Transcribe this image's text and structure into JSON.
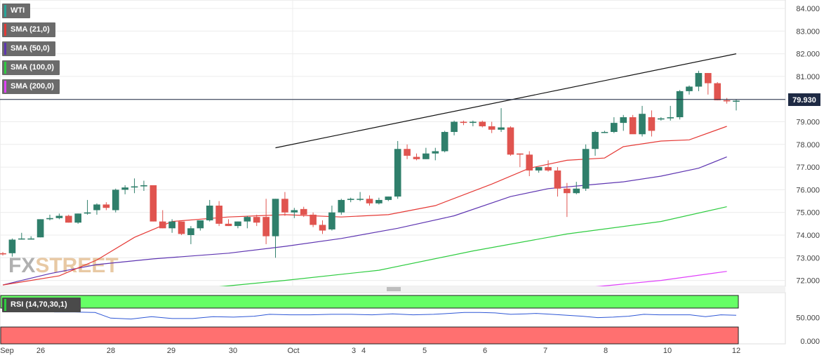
{
  "watermark": {
    "part1": "FX",
    "part2": "STREET"
  },
  "legend": [
    {
      "label": "WTI",
      "color": "#26a69a"
    },
    {
      "label": "SMA (21,0)",
      "color": "#e53935"
    },
    {
      "label": "SMA (50,0)",
      "color": "#5e35b1"
    },
    {
      "label": "SMA (100,0)",
      "color": "#2ecc40"
    },
    {
      "label": "SMA (200,0)",
      "color": "#e040fb"
    }
  ],
  "price_tag": "79.930",
  "rsi_label": "RSI (14,70,30,1)",
  "chart_data": [
    {
      "type": "candlestick",
      "title": "WTI",
      "ylim": [
        71.6,
        84.2
      ],
      "y_ticks": [
        "84.000",
        "83.000",
        "82.000",
        "81.000",
        "80.000",
        "79.000",
        "78.000",
        "77.000",
        "76.000",
        "75.000",
        "74.000",
        "73.000",
        "72.000"
      ],
      "x_ticks": [
        "Sep",
        "26",
        "28",
        "29",
        "30",
        "Oct",
        "3",
        "4",
        "5",
        "6",
        "7",
        "8",
        "10",
        "12"
      ],
      "last_price": 79.93,
      "colors": {
        "up": "#2f7f6b",
        "down": "#e0544f"
      },
      "candles": [
        [
          73.2,
          73.25,
          73.1,
          73.15
        ],
        [
          73.2,
          73.85,
          73.05,
          73.8
        ],
        [
          73.85,
          74.1,
          73.8,
          73.85
        ],
        [
          73.85,
          73.95,
          73.8,
          73.85
        ],
        [
          73.9,
          74.7,
          73.9,
          74.7
        ],
        [
          74.7,
          74.9,
          74.65,
          74.75
        ],
        [
          74.75,
          74.95,
          74.7,
          74.85
        ],
        [
          74.85,
          74.9,
          74.55,
          74.55
        ],
        [
          74.55,
          74.95,
          74.5,
          74.95
        ],
        [
          74.95,
          75.55,
          74.9,
          75.0
        ],
        [
          75.1,
          75.4,
          74.9,
          75.35
        ],
        [
          75.35,
          75.45,
          75.1,
          75.2
        ],
        [
          75.1,
          76.05,
          75.0,
          76.0
        ],
        [
          76.0,
          76.2,
          75.8,
          76.1
        ],
        [
          76.1,
          76.5,
          75.85,
          76.15
        ],
        [
          76.15,
          76.4,
          75.95,
          76.2
        ],
        [
          76.2,
          76.15,
          74.6,
          74.6
        ],
        [
          74.6,
          75.1,
          74.3,
          74.3
        ],
        [
          74.3,
          74.7,
          74.1,
          74.6
        ],
        [
          74.6,
          74.6,
          74.0,
          74.05
        ],
        [
          74.0,
          74.4,
          73.6,
          74.3
        ],
        [
          74.3,
          74.65,
          74.2,
          74.65
        ],
        [
          74.65,
          75.55,
          74.6,
          75.3
        ],
        [
          75.3,
          75.5,
          74.4,
          74.5
        ],
        [
          74.5,
          74.7,
          74.4,
          74.4
        ],
        [
          74.4,
          74.6,
          74.3,
          74.6
        ],
        [
          74.6,
          74.85,
          74.3,
          74.8
        ],
        [
          74.8,
          74.9,
          74.4,
          74.55
        ],
        [
          74.8,
          75.6,
          73.6,
          73.95
        ],
        [
          73.95,
          75.6,
          73.0,
          75.6
        ],
        [
          75.6,
          75.9,
          74.85,
          75.0
        ],
        [
          75.0,
          75.2,
          74.75,
          75.1
        ],
        [
          75.15,
          75.25,
          74.8,
          74.9
        ],
        [
          74.9,
          75.0,
          74.35,
          74.45
        ],
        [
          74.45,
          74.65,
          74.05,
          74.2
        ],
        [
          74.25,
          75.3,
          74.2,
          75.0
        ],
        [
          75.0,
          75.6,
          74.9,
          75.55
        ],
        [
          75.55,
          75.65,
          75.45,
          75.6
        ],
        [
          75.6,
          75.9,
          75.5,
          75.6
        ],
        [
          75.6,
          75.75,
          75.3,
          75.4
        ],
        [
          75.4,
          75.65,
          75.35,
          75.55
        ],
        [
          75.55,
          75.7,
          75.5,
          75.7
        ],
        [
          75.7,
          78.15,
          75.6,
          77.8
        ],
        [
          77.8,
          78.0,
          77.35,
          77.5
        ],
        [
          77.45,
          77.6,
          77.3,
          77.35
        ],
        [
          77.35,
          77.85,
          77.35,
          77.6
        ],
        [
          77.6,
          77.85,
          77.3,
          77.7
        ],
        [
          77.7,
          78.6,
          77.65,
          78.55
        ],
        [
          78.55,
          79.05,
          78.4,
          79.0
        ],
        [
          79.0,
          79.05,
          78.85,
          78.95
        ],
        [
          78.95,
          79.05,
          78.8,
          79.0
        ],
        [
          79.0,
          79.05,
          78.75,
          78.8
        ],
        [
          78.8,
          79.0,
          78.5,
          78.65
        ],
        [
          78.65,
          79.6,
          78.55,
          78.75
        ],
        [
          78.75,
          78.8,
          77.5,
          77.55
        ],
        [
          77.6,
          77.6,
          77.0,
          77.55
        ],
        [
          77.55,
          77.7,
          76.6,
          76.85
        ],
        [
          76.85,
          77.0,
          76.75,
          77.0
        ],
        [
          77.0,
          77.3,
          76.8,
          76.85
        ],
        [
          76.85,
          77.0,
          75.7,
          76.05
        ],
        [
          76.05,
          76.3,
          74.8,
          75.85
        ],
        [
          75.85,
          76.35,
          75.8,
          76.05
        ],
        [
          76.05,
          78.0,
          75.95,
          77.8
        ],
        [
          77.8,
          78.6,
          77.5,
          78.55
        ],
        [
          78.55,
          78.6,
          78.5,
          78.55
        ],
        [
          78.55,
          79.2,
          78.5,
          78.95
        ],
        [
          78.95,
          79.3,
          78.6,
          79.2
        ],
        [
          79.2,
          79.3,
          78.5,
          78.45
        ],
        [
          78.45,
          79.7,
          78.35,
          79.35
        ],
        [
          79.2,
          79.5,
          78.35,
          78.6
        ],
        [
          79.1,
          79.2,
          79.05,
          79.15
        ],
        [
          79.15,
          79.7,
          79.05,
          79.2
        ],
        [
          79.2,
          80.4,
          79.1,
          80.35
        ],
        [
          80.35,
          80.6,
          80.2,
          80.55
        ],
        [
          80.55,
          81.25,
          80.35,
          81.15
        ],
        [
          81.15,
          81.15,
          80.2,
          80.7
        ],
        [
          80.7,
          80.75,
          79.95,
          79.95
        ],
        [
          79.95,
          80.05,
          79.8,
          79.9
        ],
        [
          79.9,
          80.0,
          79.5,
          79.93
        ]
      ],
      "sma21": [
        [
          0,
          71.8
        ],
        [
          6,
          72.2
        ],
        [
          10,
          72.9
        ],
        [
          14,
          73.9
        ],
        [
          18,
          74.6
        ],
        [
          24,
          74.8
        ],
        [
          30,
          74.9
        ],
        [
          36,
          74.8
        ],
        [
          41,
          74.9
        ],
        [
          46,
          75.3
        ],
        [
          52,
          76.25
        ],
        [
          56,
          76.95
        ],
        [
          60,
          77.3
        ],
        [
          64,
          77.4
        ],
        [
          66,
          77.9
        ],
        [
          70,
          78.15
        ],
        [
          73,
          78.2
        ],
        [
          77,
          78.8
        ]
      ],
      "sma50": [
        [
          0,
          71.8
        ],
        [
          5,
          72.3
        ],
        [
          10,
          72.7
        ],
        [
          16,
          72.95
        ],
        [
          24,
          73.2
        ],
        [
          30,
          73.5
        ],
        [
          36,
          73.85
        ],
        [
          42,
          74.3
        ],
        [
          48,
          74.85
        ],
        [
          54,
          75.7
        ],
        [
          58,
          76.05
        ],
        [
          62,
          76.2
        ],
        [
          66,
          76.35
        ],
        [
          70,
          76.6
        ],
        [
          74,
          76.95
        ],
        [
          77,
          77.45
        ]
      ],
      "sma100": [
        [
          20,
          71.6
        ],
        [
          30,
          72.0
        ],
        [
          40,
          72.45
        ],
        [
          50,
          73.3
        ],
        [
          60,
          74.05
        ],
        [
          70,
          74.6
        ],
        [
          77,
          75.25
        ]
      ],
      "sma200": [
        [
          60,
          71.6
        ],
        [
          70,
          72.0
        ],
        [
          77,
          72.4
        ]
      ],
      "trendline": [
        [
          29,
          77.85
        ],
        [
          78,
          82.0
        ]
      ]
    },
    {
      "type": "line",
      "title": "RSI (14,70,30,1)",
      "ylim": [
        0,
        70
      ],
      "y_ticks": [
        "50.000",
        "0.000"
      ],
      "bands": {
        "overbought": 70,
        "oversold": 30
      },
      "rsi": [
        [
          10,
          62
        ],
        [
          14,
          62
        ],
        [
          18,
          61
        ],
        [
          21,
          49
        ],
        [
          25,
          47
        ],
        [
          29,
          52
        ],
        [
          33,
          48
        ],
        [
          37,
          48
        ],
        [
          41,
          52
        ],
        [
          45,
          51
        ],
        [
          49,
          53
        ],
        [
          52,
          57
        ],
        [
          56,
          56
        ],
        [
          60,
          56
        ],
        [
          64,
          57
        ],
        [
          68,
          57
        ],
        [
          72,
          56
        ],
        [
          76,
          58
        ],
        [
          80,
          56
        ],
        [
          84,
          57
        ],
        [
          87,
          59
        ],
        [
          90,
          61
        ],
        [
          93,
          61
        ],
        [
          96,
          60
        ],
        [
          99,
          57
        ],
        [
          102,
          58
        ],
        [
          104,
          59
        ],
        [
          107,
          57
        ],
        [
          110,
          55
        ],
        [
          113,
          53
        ],
        [
          116,
          50
        ],
        [
          119,
          51
        ],
        [
          122,
          53
        ],
        [
          125,
          57
        ],
        [
          128,
          56
        ],
        [
          131,
          56
        ],
        [
          134,
          56
        ],
        [
          137,
          52
        ],
        [
          140,
          56
        ],
        [
          143,
          55
        ]
      ]
    }
  ]
}
